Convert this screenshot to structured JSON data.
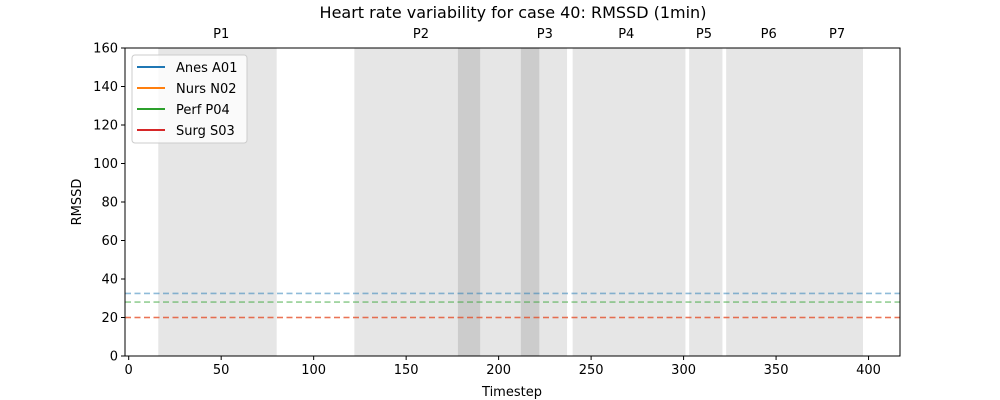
{
  "chart_data": {
    "type": "line",
    "title": "Heart rate variability for case 40: RMSSD (1min)",
    "xlabel": "Timestep",
    "ylabel": "RMSSD",
    "xlim": [
      -2,
      417
    ],
    "ylim": [
      0,
      160
    ],
    "xticks": [
      0,
      50,
      100,
      150,
      200,
      250,
      300,
      350,
      400
    ],
    "yticks": [
      0,
      20,
      40,
      60,
      80,
      100,
      120,
      140,
      160
    ],
    "grid": false,
    "legend_position": "upper-left",
    "series": [
      {
        "name": "Anes A01",
        "color": "#1f77b4",
        "values": [],
        "baseline": 32.5
      },
      {
        "name": "Nurs N02",
        "color": "#ff7f0e",
        "values": [],
        "baseline": 20
      },
      {
        "name": "Perf P04",
        "color": "#2ca02c",
        "values": [],
        "baseline": 28
      },
      {
        "name": "Surg S03",
        "color": "#d62728",
        "values": [],
        "baseline": 20
      }
    ],
    "phases": [
      {
        "label": "P1",
        "start": 16,
        "end": 80
      },
      {
        "label": "P2",
        "start": 122,
        "end": 190
      },
      {
        "label": "P3",
        "start": 190,
        "end": 237
      },
      {
        "label": "P4",
        "start": 240,
        "end": 301
      },
      {
        "label": "P5",
        "start": 303,
        "end": 321
      },
      {
        "label": "P6",
        "start": 323,
        "end": 371
      },
      {
        "label": "P7",
        "start": 371,
        "end": 397
      }
    ],
    "phase_label_positions": [
      50,
      158,
      225,
      269,
      311,
      346,
      383
    ],
    "dark_regions": [
      {
        "start": 178,
        "end": 190
      },
      {
        "start": 212,
        "end": 222
      }
    ]
  }
}
